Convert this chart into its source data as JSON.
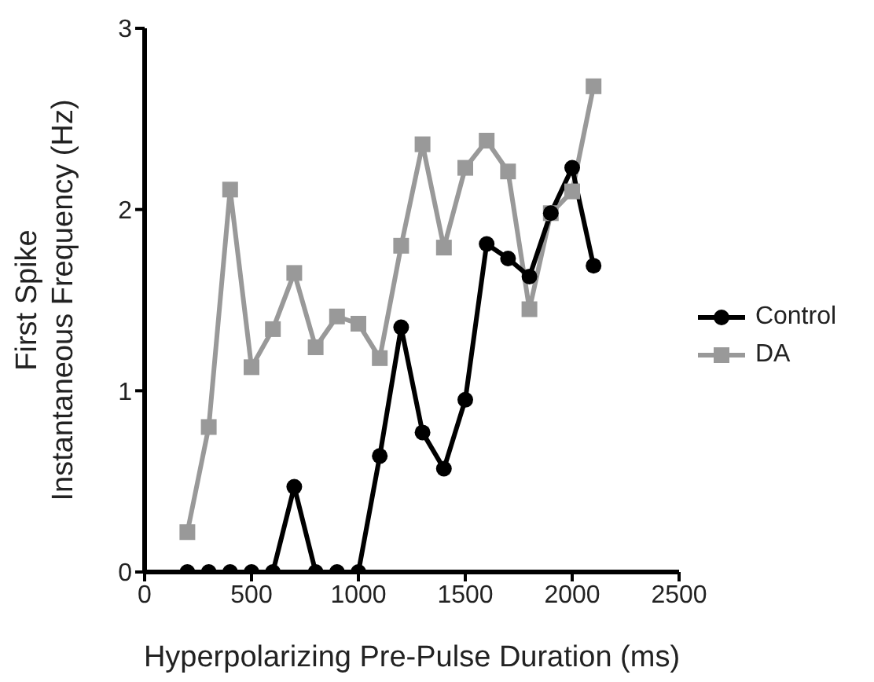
{
  "chart_data": {
    "type": "line",
    "xlabel": "Hyperpolarizing Pre-Pulse Duration (ms)",
    "ylabel": "First Spike\nInstantaneous Frequency (Hz)",
    "x": [
      200,
      300,
      400,
      500,
      600,
      700,
      800,
      900,
      1000,
      1100,
      1200,
      1300,
      1400,
      1500,
      1600,
      1700,
      1800,
      1900,
      2000,
      2100
    ],
    "series": [
      {
        "name": "Control",
        "color": "#000000",
        "marker": "circle",
        "values": [
          0,
          0,
          0,
          0,
          0,
          0.47,
          0,
          0,
          0,
          0.64,
          1.35,
          0.77,
          0.57,
          0.95,
          1.81,
          1.73,
          1.63,
          1.98,
          2.23,
          1.69
        ]
      },
      {
        "name": "DA",
        "color": "#999999",
        "marker": "square",
        "values": [
          0.22,
          0.8,
          2.11,
          1.13,
          1.34,
          1.65,
          1.24,
          1.41,
          1.37,
          1.18,
          1.8,
          2.36,
          1.79,
          2.23,
          2.38,
          2.21,
          1.45,
          1.98,
          2.1,
          2.68
        ]
      }
    ],
    "xlim": [
      0,
      2500
    ],
    "xticks": [
      0,
      500,
      1000,
      1500,
      2000,
      2500
    ],
    "ylim": [
      0,
      3
    ],
    "yticks": [
      0,
      1,
      2,
      3
    ],
    "grid": false,
    "legend": "right",
    "line_style": "solid"
  }
}
